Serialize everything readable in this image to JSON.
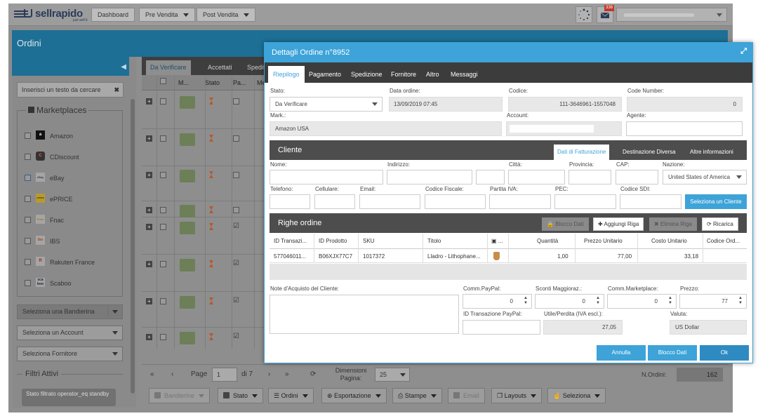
{
  "topbar": {
    "brand": "sellrapido",
    "tagline": "just sell it",
    "dashboard": "Dashboard",
    "pre_vendita": "Pre Vendita",
    "post_vendita": "Post Vendita",
    "notification_count": "338"
  },
  "page": {
    "title": "Ordini"
  },
  "sidebar": {
    "search_placeholder": "Inserisci un testo da cercare",
    "marketplaces_title": "Marketplaces",
    "marketplaces": [
      {
        "name": "Amazon",
        "logo": "a"
      },
      {
        "name": "CDiscount",
        "logo": "C"
      },
      {
        "name": "eBay",
        "logo": "eBay"
      },
      {
        "name": "ePRICE",
        "logo": "ePRICE"
      },
      {
        "name": "Fnac",
        "logo": "Fnac"
      },
      {
        "name": "IBS",
        "logo": "ibs"
      },
      {
        "name": "Rakuten France",
        "logo": "R"
      },
      {
        "name": "Scaboo",
        "logo": "sca boo"
      }
    ],
    "bandiera_select": "Seleziona una Bandierina",
    "account_select": "Seleziona un Account",
    "fornitore_select": "Seleziona Fornitore",
    "filtri_title": "Filtri Attivi",
    "filter_chip": "Stato filtrato operator_eq standby"
  },
  "grid": {
    "tabs": [
      "Da Verificare",
      "Accettati",
      "Spediti"
    ],
    "columns": [
      "M...",
      "Stato",
      "Pa...",
      "Me"
    ],
    "rows": [
      {
        "paid": false
      },
      {
        "paid": false
      },
      {
        "paid": false
      },
      {
        "paid": false
      },
      {
        "paid": true
      },
      {
        "paid": true
      },
      {
        "paid": true
      },
      {
        "paid": true
      }
    ]
  },
  "pager": {
    "page_label": "Page",
    "page_value": "1",
    "of_label": "di 7",
    "size_label": "Dimensioni Pagina:",
    "size_value": "25",
    "n_ordini_label": "N.Ordini:",
    "n_ordini_value": "162"
  },
  "toolbar": {
    "bandierine": "Bandierine",
    "stato": "Stato",
    "ordini": "Ordini",
    "esportazione": "Esportazione",
    "stampe": "Stampe",
    "email": "Email",
    "layouts": "Layouts",
    "seleziona": "Seleziona"
  },
  "modal": {
    "title": "Dettagli Ordine n°8952",
    "tabs": [
      "Riepilogo",
      "Pagamento",
      "Spedizione",
      "Fornitore",
      "Altro",
      "Messaggi"
    ],
    "stato_label": "Stato:",
    "stato_value": "Da Verificare",
    "data_label": "Data ordine:",
    "data_value": "13/09/2019 07:45",
    "codice_label": "Codice:",
    "codice_value": "111-3646961-1557048",
    "code_number_label": "Code Number:",
    "code_number_value": "0",
    "mark_label": "Mark.:",
    "mark_value": "Amazon USA",
    "account_label": "Account:",
    "agente_label": "Agente:",
    "cliente": {
      "title": "Cliente",
      "tabs": [
        "Dati di Fatturazione",
        "Destinazione Diversa",
        "Altre informazioni"
      ],
      "nome": "Nome:",
      "indirizzo": "Indirizzo:",
      "citta": "Città:",
      "provincia": "Provincia:",
      "cap": "CAP:",
      "nazione": "Nazione:",
      "nazione_value": "United States of America",
      "telefono": "Telefono:",
      "cellulare": "Cellulare:",
      "email": "Email:",
      "codice_fiscale": "Codice Fiscale:",
      "partita_iva": "Partita IVA:",
      "pec": "PEC:",
      "codice_sdi": "Codice SDI:",
      "seleziona_cliente": "Seleziona un Cliente"
    },
    "righe": {
      "title": "Righe ordine",
      "blocco_btn": "Blocco Dati",
      "aggiungi_btn": "Aggiungi Riga",
      "elimina_btn": "Elimina Riga",
      "ricarica_btn": "Ricarica",
      "columns": [
        "ID Transazi...",
        "ID Prodotto",
        "SKU",
        "Titolo",
        "...",
        "Quantità",
        "Prezzo Unitario",
        "Costo Unitario",
        "Codice Ord..."
      ],
      "row": {
        "id_transazione": "577046011...",
        "id_prodotto": "B06XJX77C7",
        "sku": "1017372",
        "titolo": "Lladro - Lithophane...",
        "quantita": "1,00",
        "prezzo": "77,00",
        "costo": "33,18"
      }
    },
    "note_label": "Note d'Acquisto del Cliente:",
    "comm_paypal_label": "Comm.PayPal:",
    "comm_paypal_value": "0",
    "sconti_label": "Sconti Maggioraz.:",
    "sconti_value": "0",
    "comm_marketplace_label": "Comm.Marketplace:",
    "comm_marketplace_value": "0",
    "prezzo_label": "Prezzo:",
    "prezzo_value": "77",
    "id_paypal_label": "ID Transazione PayPal:",
    "utile_label": "Utile/Perdita (IVA escl.):",
    "utile_value": "27,05",
    "valuta_label": "Valuta:",
    "valuta_value": "US Dollar",
    "annulla": "Annulla",
    "blocco_dati": "Blocco Dati",
    "ok": "Ok"
  }
}
